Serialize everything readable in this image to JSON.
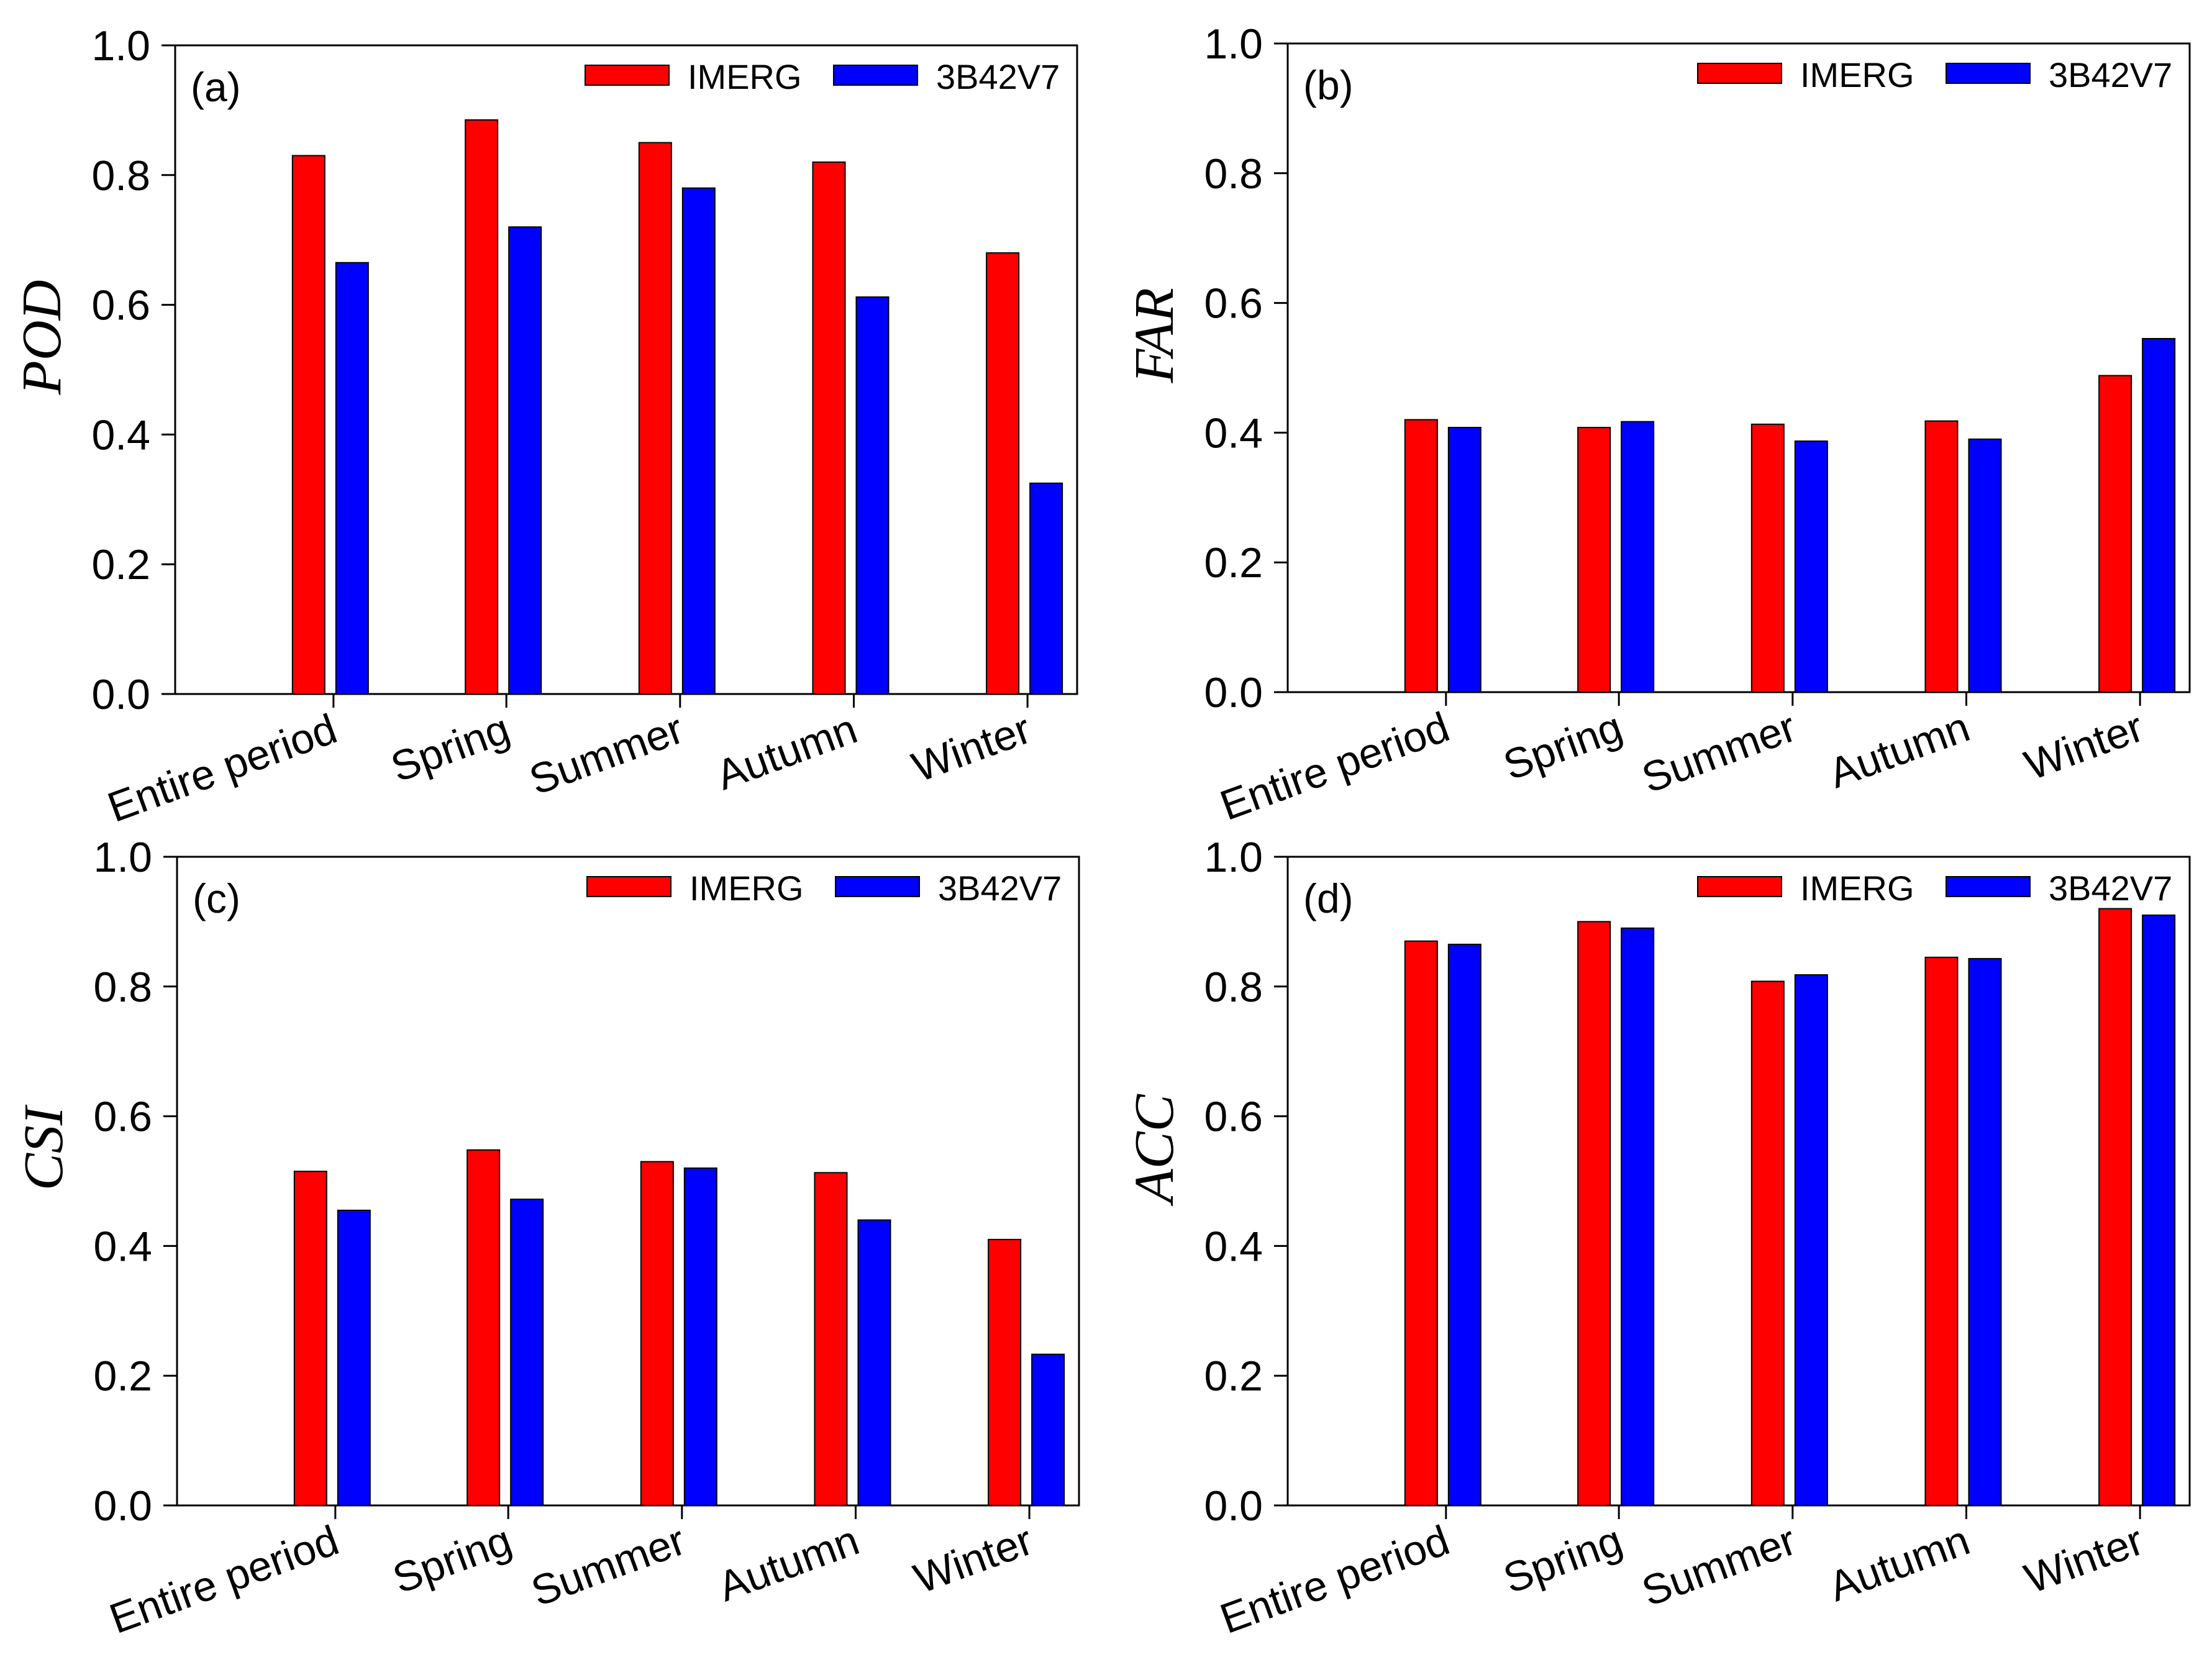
{
  "chart_data": [
    {
      "type": "bar",
      "panel_label": "(a)",
      "ylabel": "POD",
      "ylim": [
        0,
        1.0
      ],
      "yticks": [
        "0.0",
        "0.2",
        "0.4",
        "0.6",
        "0.8",
        "1.0"
      ],
      "categories": [
        "Entire period",
        "Spring",
        "Summer",
        "Autumn",
        "Winter"
      ],
      "series": [
        {
          "name": "IMERG",
          "color": "#ff0000",
          "values": [
            0.83,
            0.885,
            0.85,
            0.82,
            0.68
          ]
        },
        {
          "name": "3B42V7",
          "color": "#0000ff",
          "values": [
            0.665,
            0.72,
            0.78,
            0.612,
            0.325
          ]
        }
      ],
      "legend": "top-right",
      "grid": false
    },
    {
      "type": "bar",
      "panel_label": "(b)",
      "ylabel": "FAR",
      "ylim": [
        0,
        1.0
      ],
      "yticks": [
        "0.0",
        "0.2",
        "0.4",
        "0.6",
        "0.8",
        "1.0"
      ],
      "categories": [
        "Entire period",
        "Spring",
        "Summer",
        "Autumn",
        "Winter"
      ],
      "series": [
        {
          "name": "IMERG",
          "color": "#ff0000",
          "values": [
            0.42,
            0.408,
            0.413,
            0.418,
            0.488
          ]
        },
        {
          "name": "3B42V7",
          "color": "#0000ff",
          "values": [
            0.408,
            0.417,
            0.387,
            0.39,
            0.545
          ]
        }
      ],
      "legend": "top-right",
      "grid": false
    },
    {
      "type": "bar",
      "panel_label": "(c)",
      "ylabel": "CSI",
      "ylim": [
        0,
        1.0
      ],
      "yticks": [
        "0.0",
        "0.2",
        "0.4",
        "0.6",
        "0.8",
        "1.0"
      ],
      "categories": [
        "Entire period",
        "Spring",
        "Summer",
        "Autumn",
        "Winter"
      ],
      "series": [
        {
          "name": "IMERG",
          "color": "#ff0000",
          "values": [
            0.515,
            0.548,
            0.53,
            0.513,
            0.41
          ]
        },
        {
          "name": "3B42V7",
          "color": "#0000ff",
          "values": [
            0.455,
            0.472,
            0.52,
            0.44,
            0.233
          ]
        }
      ],
      "legend": "top-right",
      "grid": false
    },
    {
      "type": "bar",
      "panel_label": "(d)",
      "ylabel": "ACC",
      "ylim": [
        0,
        1.0
      ],
      "yticks": [
        "0.0",
        "0.2",
        "0.4",
        "0.6",
        "0.8",
        "1.0"
      ],
      "categories": [
        "Entire period",
        "Spring",
        "Summer",
        "Autumn",
        "Winter"
      ],
      "series": [
        {
          "name": "IMERG",
          "color": "#ff0000",
          "values": [
            0.87,
            0.9,
            0.808,
            0.845,
            0.92
          ]
        },
        {
          "name": "3B42V7",
          "color": "#0000ff",
          "values": [
            0.865,
            0.89,
            0.818,
            0.843,
            0.91
          ]
        }
      ],
      "legend": "top-right",
      "grid": false
    }
  ]
}
